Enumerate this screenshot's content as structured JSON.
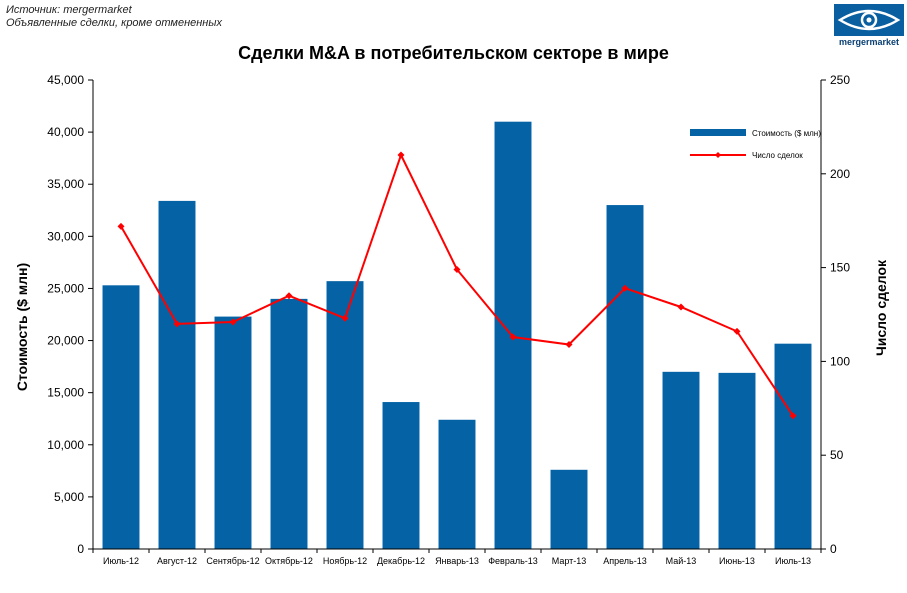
{
  "source": {
    "line1": "Источник: mergermarket",
    "line2": "Объявленные сделки, кроме отмененных"
  },
  "logo": {
    "text": "mergermarket",
    "color": "#0a5fa0"
  },
  "chart_data": {
    "type": "bar",
    "title": "Сделки M&A в потребительском секторе в мире",
    "categories": [
      "Июль-12",
      "Август-12",
      "Сентябрь-12",
      "Октябрь-12",
      "Ноябрь-12",
      "Декабрь-12",
      "Январь-13",
      "Февраль-13",
      "Март-13",
      "Апрель-13",
      "Май-13",
      "Июнь-13",
      "Июль-13"
    ],
    "ylabel": "Стоимость ($ млн)",
    "y2label": "Число сделок",
    "ylim": [
      0,
      45000
    ],
    "y2lim": [
      0,
      250
    ],
    "yticks": [
      "0",
      "5,000",
      "10,000",
      "15,000",
      "20,000",
      "25,000",
      "30,000",
      "35,000",
      "40,000",
      "45,000"
    ],
    "y2ticks": [
      "0",
      "50",
      "100",
      "150",
      "200",
      "250"
    ],
    "series": [
      {
        "name": "Стоимость ($ млн)",
        "type": "bar",
        "axis": "left",
        "color": "#0563a5",
        "values": [
          25300,
          33400,
          22300,
          24000,
          25700,
          14100,
          12400,
          41000,
          7600,
          33000,
          17000,
          16900,
          19700
        ]
      },
      {
        "name": "Число сделок",
        "type": "line",
        "axis": "right",
        "color": "#ff0000",
        "values": [
          172,
          120,
          121,
          135,
          123,
          210,
          149,
          113,
          109,
          139,
          129,
          116,
          71
        ]
      }
    ],
    "legend": "top-right",
    "grid": false
  }
}
